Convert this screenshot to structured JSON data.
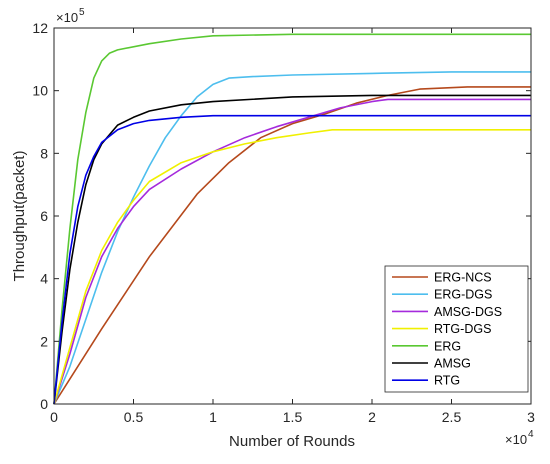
{
  "chart_data": {
    "type": "line",
    "xlabel": "Number of Rounds",
    "ylabel": "Throughput(packet)",
    "x_multiplier_label": "×10",
    "x_multiplier_exp": "4",
    "y_multiplier_label": "×10",
    "y_multiplier_exp": "5",
    "xlim": [
      0,
      3
    ],
    "ylim": [
      0,
      12
    ],
    "x_ticks": [
      0,
      0.5,
      1,
      1.5,
      2,
      2.5,
      3
    ],
    "x_tick_labels": [
      "0",
      "0.5",
      "1",
      "1.5",
      "2",
      "2.5",
      "3"
    ],
    "y_ticks": [
      0,
      2,
      4,
      6,
      8,
      10,
      12
    ],
    "y_tick_labels": [
      "0",
      "2",
      "4",
      "6",
      "8",
      "10",
      "12"
    ],
    "grid": false,
    "legend_position": "bottom-right",
    "series": [
      {
        "name": "ERG-NCS",
        "color": "#b5491c",
        "x": [
          0,
          0.3,
          0.6,
          0.9,
          1.1,
          1.3,
          1.5,
          1.7,
          1.9,
          2.1,
          2.3,
          2.6,
          3.0
        ],
        "y": [
          0,
          2.4,
          4.7,
          6.7,
          7.7,
          8.5,
          8.95,
          9.25,
          9.6,
          9.85,
          10.05,
          10.12,
          10.12
        ]
      },
      {
        "name": "ERG-DGS",
        "color": "#4dbeee",
        "x": [
          0,
          0.1,
          0.2,
          0.3,
          0.4,
          0.5,
          0.6,
          0.7,
          0.8,
          0.9,
          1.0,
          1.1,
          1.25,
          1.5,
          2.0,
          2.5,
          3.0
        ],
        "y": [
          0,
          1.2,
          2.7,
          4.2,
          5.5,
          6.6,
          7.6,
          8.5,
          9.2,
          9.8,
          10.2,
          10.4,
          10.45,
          10.5,
          10.55,
          10.6,
          10.6
        ]
      },
      {
        "name": "AMSG-DGS",
        "color": "#a52adc",
        "x": [
          0,
          0.1,
          0.2,
          0.3,
          0.4,
          0.5,
          0.6,
          0.8,
          1.0,
          1.2,
          1.4,
          1.6,
          1.8,
          2.0,
          2.1,
          2.5,
          3.0
        ],
        "y": [
          0,
          1.6,
          3.4,
          4.7,
          5.6,
          6.3,
          6.85,
          7.5,
          8.05,
          8.5,
          8.85,
          9.15,
          9.45,
          9.65,
          9.72,
          9.72,
          9.72
        ]
      },
      {
        "name": "RTG-DGS",
        "color": "#f0f000",
        "x": [
          0,
          0.1,
          0.2,
          0.3,
          0.4,
          0.5,
          0.6,
          0.8,
          1.0,
          1.2,
          1.4,
          1.6,
          1.75,
          2.0,
          2.5,
          3.0
        ],
        "y": [
          0,
          1.8,
          3.6,
          4.9,
          5.8,
          6.5,
          7.1,
          7.7,
          8.05,
          8.3,
          8.5,
          8.65,
          8.75,
          8.75,
          8.75,
          8.75
        ]
      },
      {
        "name": "ERG",
        "color": "#5ac832",
        "x": [
          0,
          0.05,
          0.1,
          0.15,
          0.2,
          0.25,
          0.3,
          0.35,
          0.4,
          0.6,
          0.8,
          1.0,
          1.5,
          2.0,
          2.5,
          3.0
        ],
        "y": [
          0,
          3.0,
          5.6,
          7.8,
          9.3,
          10.4,
          10.95,
          11.2,
          11.3,
          11.5,
          11.65,
          11.75,
          11.8,
          11.8,
          11.8,
          11.8
        ]
      },
      {
        "name": "AMSG",
        "color": "#000000",
        "x": [
          0,
          0.05,
          0.1,
          0.15,
          0.2,
          0.25,
          0.3,
          0.4,
          0.5,
          0.6,
          0.8,
          1.0,
          1.5,
          2.0,
          2.5,
          3.0
        ],
        "y": [
          0,
          2.3,
          4.3,
          5.8,
          7.0,
          7.8,
          8.3,
          8.9,
          9.15,
          9.35,
          9.55,
          9.65,
          9.8,
          9.85,
          9.85,
          9.85
        ]
      },
      {
        "name": "RTG",
        "color": "#0000e6",
        "x": [
          0,
          0.05,
          0.1,
          0.15,
          0.2,
          0.25,
          0.3,
          0.4,
          0.5,
          0.6,
          0.8,
          1.0,
          1.5,
          2.0,
          3.0
        ],
        "y": [
          0,
          2.6,
          4.8,
          6.3,
          7.3,
          7.9,
          8.35,
          8.75,
          8.95,
          9.05,
          9.15,
          9.2,
          9.2,
          9.2,
          9.2
        ]
      }
    ]
  }
}
